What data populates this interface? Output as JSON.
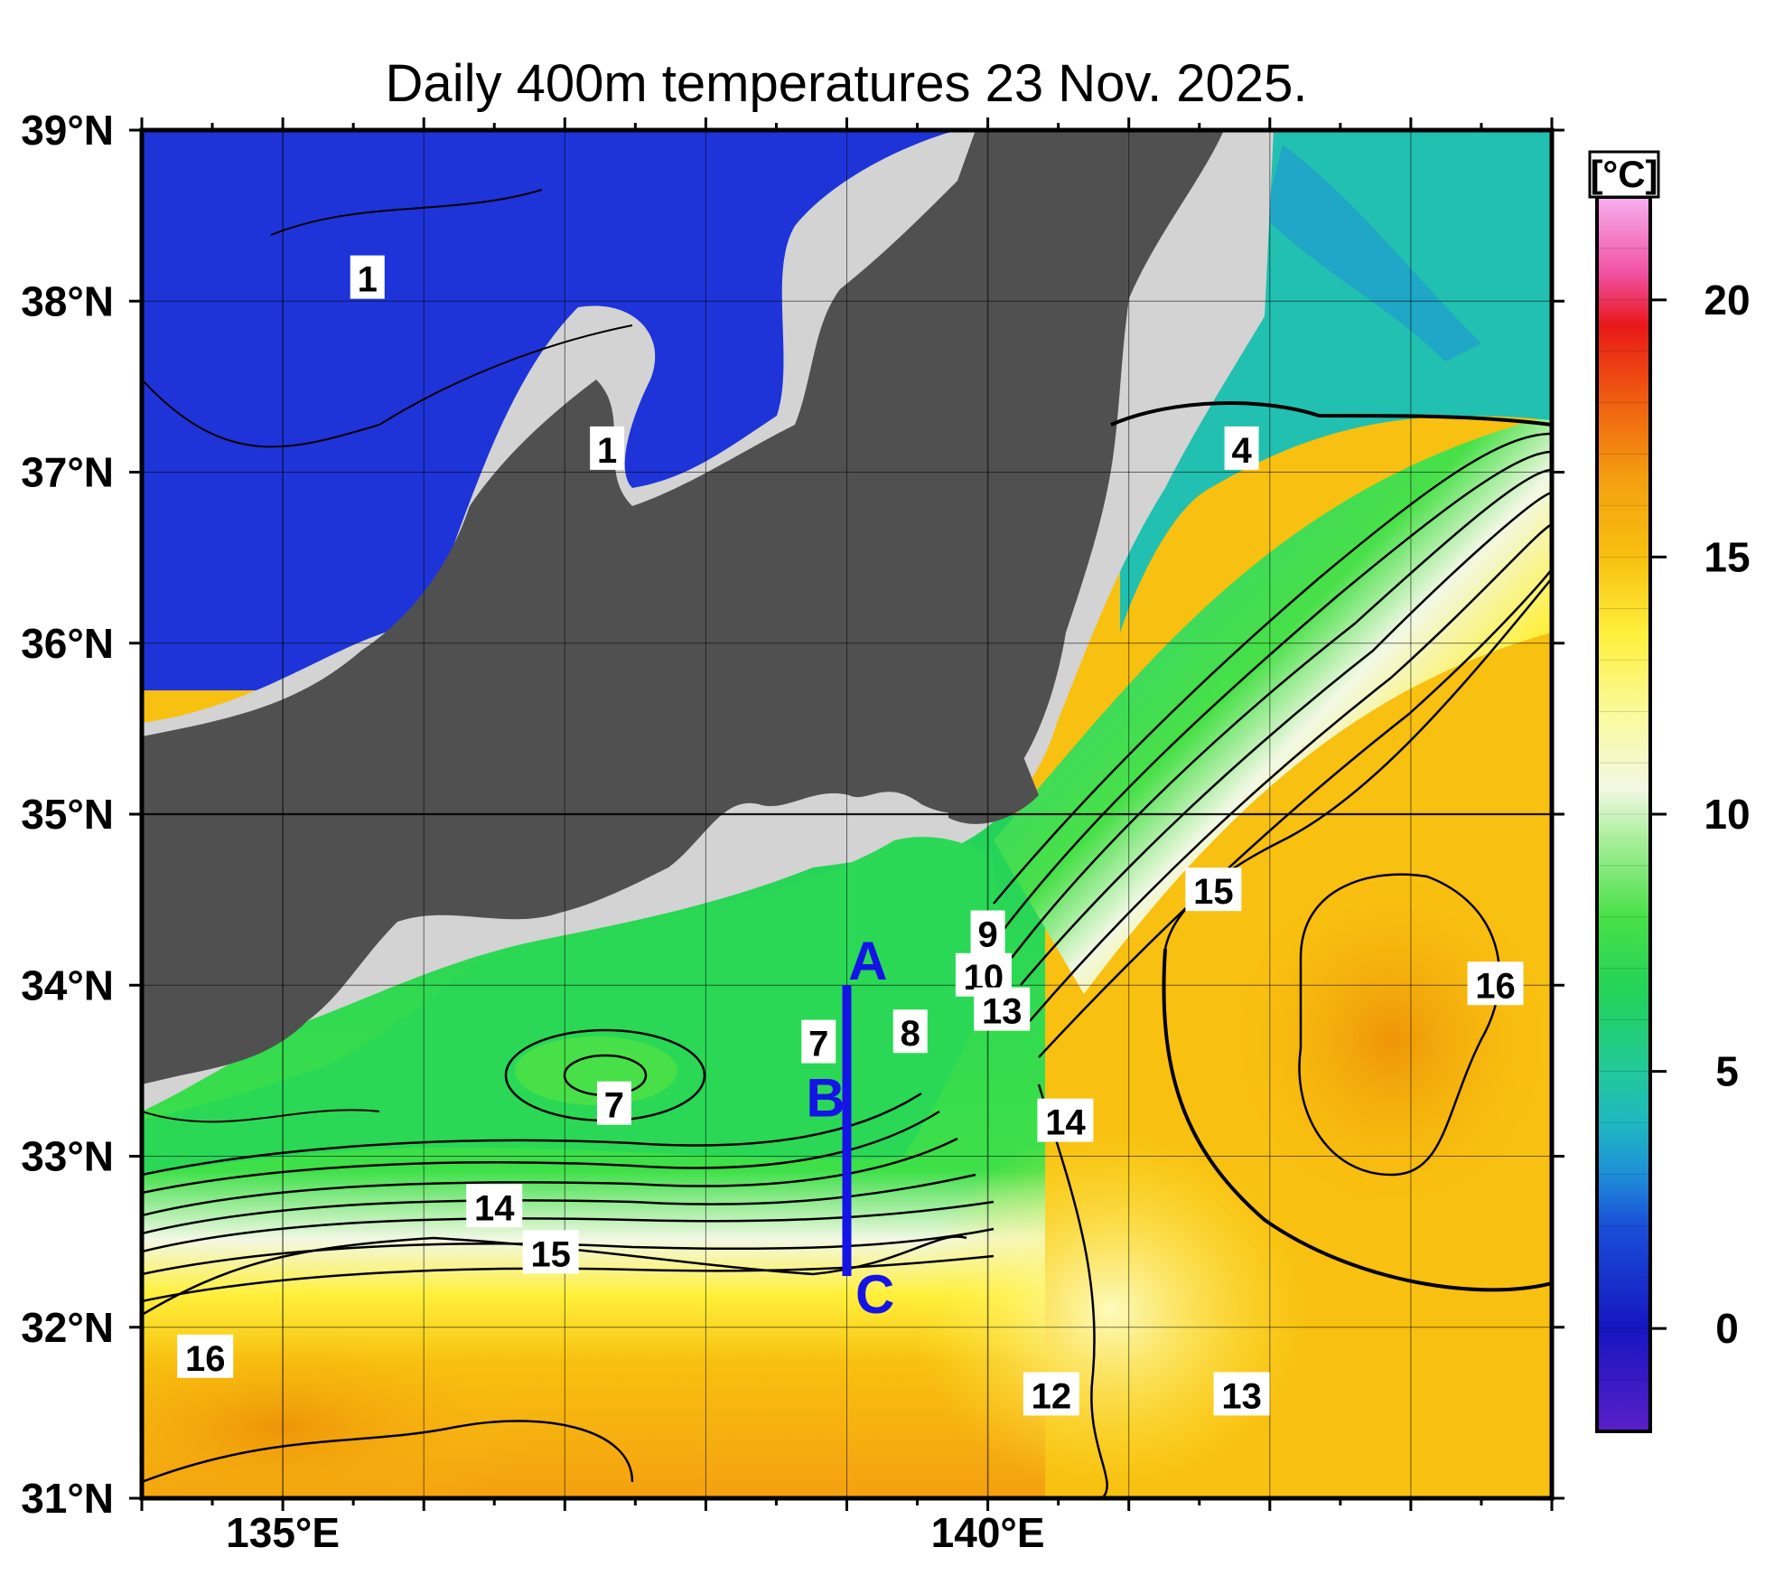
{
  "title": "Daily 400m temperatures 23 Nov. 2025.",
  "unit": "[°C]",
  "lat_ticks": [
    {
      "value": 39,
      "label": "39°N"
    },
    {
      "value": 38,
      "label": "38°N"
    },
    {
      "value": 37,
      "label": "37°N"
    },
    {
      "value": 36,
      "label": "36°N"
    },
    {
      "value": 35,
      "label": "35°N"
    },
    {
      "value": 34,
      "label": "34°N"
    },
    {
      "value": 33,
      "label": "33°N"
    },
    {
      "value": 32,
      "label": "32°N"
    },
    {
      "value": 31,
      "label": "31°N"
    }
  ],
  "lon_ticks": [
    {
      "value": 135,
      "label": "135°E"
    },
    {
      "value": 140,
      "label": "140°E"
    }
  ],
  "extent": {
    "lon_min": 134,
    "lon_max": 144,
    "lat_min": 31,
    "lat_max": 39
  },
  "colorbar": {
    "min": -2,
    "max": 22,
    "ticks": [
      {
        "value": 20,
        "label": "20"
      },
      {
        "value": 15,
        "label": "15"
      },
      {
        "value": 10,
        "label": "10"
      },
      {
        "value": 5,
        "label": "5"
      },
      {
        "value": 0,
        "label": "0"
      }
    ],
    "stops": [
      {
        "value": -2,
        "color": "#5a1fc8"
      },
      {
        "value": 0,
        "color": "#1616c0"
      },
      {
        "value": 2,
        "color": "#1a4fd8"
      },
      {
        "value": 3,
        "color": "#1f8fd8"
      },
      {
        "value": 4,
        "color": "#1fb8c0"
      },
      {
        "value": 5,
        "color": "#22c89a"
      },
      {
        "value": 6.5,
        "color": "#22d25a"
      },
      {
        "value": 8,
        "color": "#48e048"
      },
      {
        "value": 9.5,
        "color": "#a8ee9a"
      },
      {
        "value": 10.5,
        "color": "#f2f8e4"
      },
      {
        "value": 12,
        "color": "#fafa9a"
      },
      {
        "value": 13.5,
        "color": "#fff03c"
      },
      {
        "value": 15,
        "color": "#f8c010"
      },
      {
        "value": 16.5,
        "color": "#f4a010"
      },
      {
        "value": 18,
        "color": "#f06010"
      },
      {
        "value": 19.5,
        "color": "#e81818"
      },
      {
        "value": 20.5,
        "color": "#f050a0"
      },
      {
        "value": 22,
        "color": "#f8b0f0"
      }
    ]
  },
  "contour_labels": [
    {
      "text": "1",
      "lon": 135.6,
      "lat": 38.13
    },
    {
      "text": "1",
      "lon": 137.3,
      "lat": 37.13
    },
    {
      "text": "4",
      "lon": 141.8,
      "lat": 37.13
    },
    {
      "text": "15",
      "lon": 141.6,
      "lat": 34.55
    },
    {
      "text": "16",
      "lon": 143.6,
      "lat": 34.0
    },
    {
      "text": "9",
      "lon": 140.0,
      "lat": 34.3
    },
    {
      "text": "10",
      "lon": 139.97,
      "lat": 34.05
    },
    {
      "text": "13",
      "lon": 140.1,
      "lat": 33.85
    },
    {
      "text": "7",
      "lon": 138.8,
      "lat": 33.66
    },
    {
      "text": "8",
      "lon": 139.45,
      "lat": 33.72
    },
    {
      "text": "7",
      "lon": 137.35,
      "lat": 33.3
    },
    {
      "text": "14",
      "lon": 140.55,
      "lat": 33.2
    },
    {
      "text": "14",
      "lon": 136.5,
      "lat": 32.7
    },
    {
      "text": "15",
      "lon": 136.9,
      "lat": 32.43
    },
    {
      "text": "16",
      "lon": 134.45,
      "lat": 31.82
    },
    {
      "text": "12",
      "lon": 140.45,
      "lat": 31.6
    },
    {
      "text": "13",
      "lon": 141.8,
      "lat": 31.6
    }
  ],
  "section_line": {
    "lon": 139.0,
    "lat_start": 34.0,
    "lat_end": 32.3,
    "color": "#1414e6"
  },
  "section_marks": [
    {
      "text": "A",
      "lon": 139.15,
      "lat": 34.15
    },
    {
      "text": "B",
      "lon": 138.85,
      "lat": 33.35
    },
    {
      "text": "C",
      "lon": 139.2,
      "lat": 32.2
    }
  ],
  "colors": {
    "land": "#505050",
    "shelf": "#d3d3d3",
    "cold_sea": "#1e34d8",
    "grid": "#000000"
  }
}
